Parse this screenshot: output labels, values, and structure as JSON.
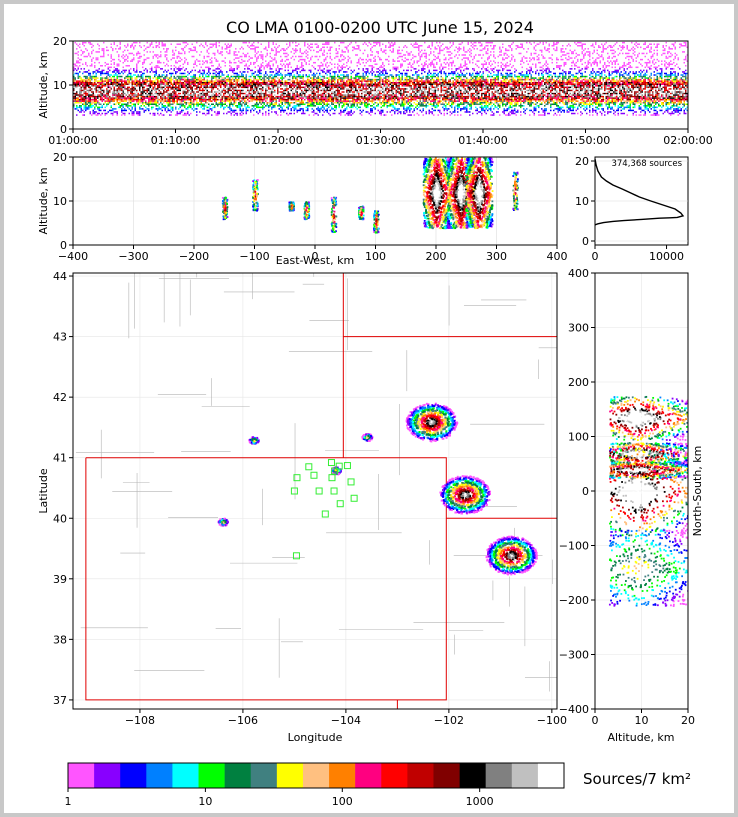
{
  "chart_data": [
    {
      "type": "heatmap",
      "title": "CO LMA 0100-0200 UTC June 15, 2024",
      "panel": "time-height",
      "xlabel": "",
      "ylabel": "Altitude, km",
      "xticks": [
        "01:00:00",
        "01:10:00",
        "01:20:00",
        "01:30:00",
        "01:40:00",
        "01:50:00",
        "02:00:00"
      ],
      "yticks": [
        0,
        10,
        20
      ],
      "ylim": [
        0,
        20
      ],
      "description_values": {
        "source_altitude_range_km": [
          3,
          19
        ],
        "densest_band_km": [
          5,
          13
        ]
      }
    },
    {
      "type": "heatmap",
      "panel": "east-west vs altitude",
      "xlabel": "East-West, km",
      "ylabel": "Altitude, km",
      "xticks": [
        -400,
        -300,
        -200,
        -100,
        0,
        100,
        200,
        300,
        400
      ],
      "yticks": [
        0,
        10,
        20
      ],
      "xlim": [
        -400,
        400
      ],
      "ylim": [
        0,
        20
      ],
      "clusters": [
        {
          "x": -150,
          "alt": [
            6,
            11
          ]
        },
        {
          "x": -100,
          "alt": [
            8,
            15
          ]
        },
        {
          "x": -40,
          "alt": [
            8,
            10
          ]
        },
        {
          "x": -15,
          "alt": [
            6,
            10
          ]
        },
        {
          "x": 30,
          "alt": [
            3,
            11
          ]
        },
        {
          "x": 75,
          "alt": [
            6,
            9
          ]
        },
        {
          "x": 100,
          "alt": [
            3,
            8
          ]
        },
        {
          "x": 200,
          "alt": [
            4,
            20
          ]
        },
        {
          "x": 240,
          "alt": [
            4,
            20
          ]
        },
        {
          "x": 270,
          "alt": [
            4,
            20
          ]
        },
        {
          "x": 330,
          "alt": [
            8,
            17
          ]
        }
      ]
    },
    {
      "type": "line",
      "panel": "altitude histogram",
      "annotation": "374,368 sources",
      "xticks": [
        0,
        10000
      ],
      "yticks": [
        0,
        10,
        20
      ],
      "xlim": [
        0,
        13000
      ],
      "ylim": [
        -1,
        21
      ],
      "x": [
        0,
        100,
        400,
        1200,
        2500,
        4000,
        6500,
        9000,
        10500,
        11500,
        12300,
        12000,
        11200,
        9500,
        7800,
        6200,
        5000,
        3800,
        2500,
        1600,
        900,
        400,
        150,
        0
      ],
      "y": [
        4.0,
        4.1,
        4.3,
        4.6,
        4.9,
        5.1,
        5.4,
        5.7,
        5.8,
        5.9,
        6.3,
        7.0,
        8.0,
        9.0,
        10.0,
        11.0,
        12.0,
        13.0,
        14.0,
        15.0,
        16.0,
        17.5,
        19.0,
        20.5
      ]
    },
    {
      "type": "heatmap",
      "panel": "plan view map",
      "xlabel": "Longitude",
      "ylabel": "Latitude",
      "xticks": [
        "−108",
        "−106",
        "−104",
        "−102",
        "−100"
      ],
      "yticks": [
        37,
        38,
        39,
        40,
        41,
        42,
        43,
        44
      ],
      "xlim": [
        -109.3,
        -99.9
      ],
      "ylim": [
        36.85,
        44.05
      ],
      "storm_cells": [
        {
          "lon": -102.35,
          "lat": 41.6
        },
        {
          "lon": -101.7,
          "lat": 40.4
        },
        {
          "lon": -100.8,
          "lat": 39.4
        },
        {
          "lon": -103.6,
          "lat": 41.35
        },
        {
          "lon": -104.2,
          "lat": 40.8
        },
        {
          "lon": -105.8,
          "lat": 41.3
        },
        {
          "lon": -106.4,
          "lat": 39.95
        }
      ],
      "stations": [
        [
          -104.72,
          40.85
        ],
        [
          -104.28,
          40.92
        ],
        [
          -104.13,
          40.86
        ],
        [
          -103.97,
          40.87
        ],
        [
          -104.95,
          40.67
        ],
        [
          -104.62,
          40.71
        ],
        [
          -104.27,
          40.67
        ],
        [
          -104.22,
          40.78
        ],
        [
          -104.23,
          40.45
        ],
        [
          -103.9,
          40.6
        ],
        [
          -105.0,
          40.45
        ],
        [
          -104.52,
          40.45
        ],
        [
          -103.84,
          40.33
        ],
        [
          -104.11,
          40.24
        ],
        [
          -104.4,
          40.07
        ],
        [
          -104.96,
          39.38
        ]
      ]
    },
    {
      "type": "heatmap",
      "panel": "altitude vs north-south",
      "xlabel": "Altitude, km",
      "ylabel": "North-South, km",
      "xticks": [
        0,
        10,
        20
      ],
      "yticks": [
        400,
        300,
        200,
        100,
        0,
        -100,
        -200,
        -300,
        -400
      ],
      "xlim": [
        0,
        20
      ],
      "ylim": [
        -400,
        400
      ]
    }
  ],
  "colorbar": {
    "label": "Sources/7 km²",
    "ticks": [
      "1",
      "10",
      "100",
      "1000"
    ],
    "colors": [
      "#ff55ff",
      "#8800ff",
      "#0000ff",
      "#0080ff",
      "#00ffff",
      "#00ff00",
      "#008040",
      "#408080",
      "#ffff00",
      "#ffc080",
      "#ff8000",
      "#ff0080",
      "#ff0000",
      "#c00000",
      "#800000",
      "#000000",
      "#808080",
      "#c0c0c0",
      "#ffffff"
    ]
  }
}
